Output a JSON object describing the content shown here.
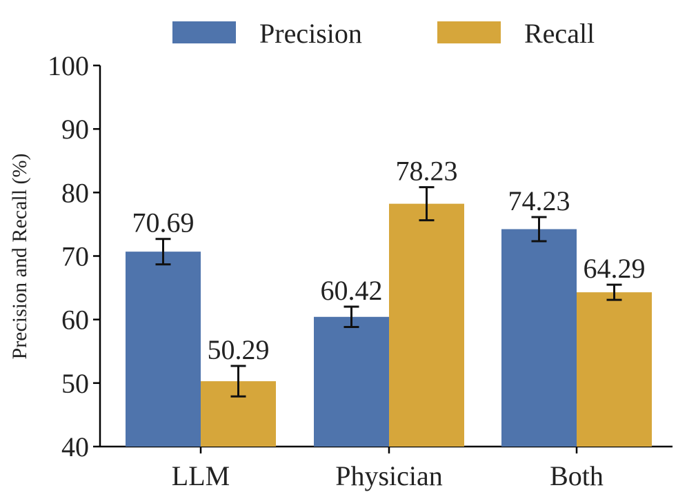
{
  "chart_data": {
    "type": "bar",
    "title": "",
    "xlabel": "",
    "ylabel": "Precision and Recall (%)",
    "ylim": [
      40,
      100
    ],
    "yticks": [
      "40",
      "50",
      "60",
      "70",
      "80",
      "90",
      "100"
    ],
    "categories": [
      "LLM",
      "Physician",
      "Both"
    ],
    "series": [
      {
        "name": "Precision",
        "color": "#4f74ac",
        "values": [
          70.69,
          60.42,
          74.23
        ],
        "labels": [
          "70.69",
          "60.42",
          "74.23"
        ],
        "error": [
          2.0,
          1.6,
          1.9
        ]
      },
      {
        "name": "Recall",
        "color": "#d6a63b",
        "values": [
          50.29,
          78.23,
          64.29
        ],
        "labels": [
          "50.29",
          "78.23",
          "64.29"
        ],
        "error": [
          2.4,
          2.6,
          1.2
        ]
      }
    ],
    "legend_position": "top",
    "grid": false
  }
}
